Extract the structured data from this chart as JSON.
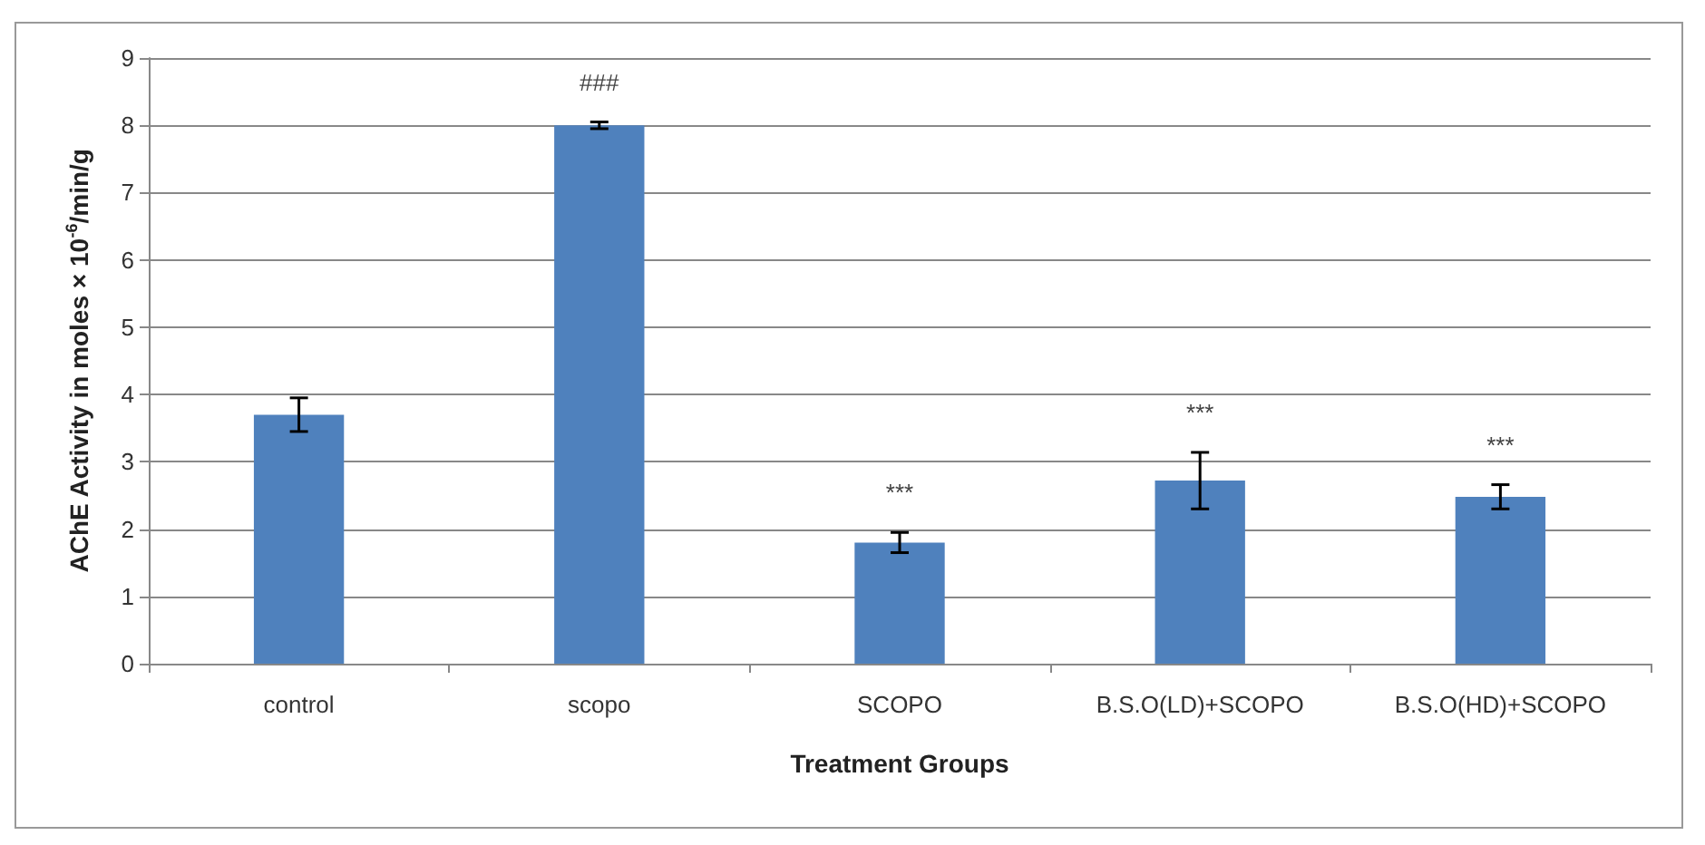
{
  "chart_data": {
    "type": "bar",
    "xlabel": "Treatment Groups",
    "ylabel": "AChE Activity in moles × 10$^{-6}$/min/g",
    "categories": [
      "control",
      "scopo",
      "SCOPO",
      "B.S.O(LD)+SCOPO",
      "B.S.O(HD)+SCOPO"
    ],
    "values": [
      3.7,
      8.0,
      1.8,
      2.72,
      2.48
    ],
    "errors": [
      0.25,
      0.05,
      0.15,
      0.42,
      0.18
    ],
    "color": "#4f81bd",
    "ylim": [
      0,
      9
    ],
    "yticks": [
      0,
      1,
      2,
      3,
      4,
      5,
      6,
      7,
      8,
      9
    ],
    "grid": "y",
    "annotations": [
      "###",
      "***",
      "***",
      "***"
    ]
  }
}
